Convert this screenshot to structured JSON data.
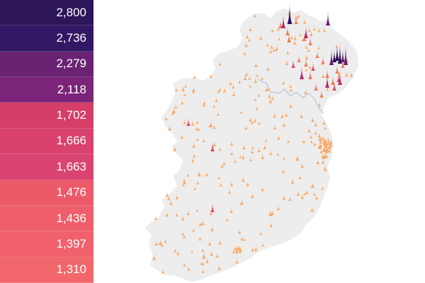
{
  "legend": {
    "items": [
      {
        "label": "2,800",
        "color": "#2c1659"
      },
      {
        "label": "2,736",
        "color": "#311764"
      },
      {
        "label": "2,279",
        "color": "#6a2272"
      },
      {
        "label": "2,118",
        "color": "#7b2479"
      },
      {
        "label": "1,702",
        "color": "#d53e67"
      },
      {
        "label": "1,666",
        "color": "#d8426c"
      },
      {
        "label": "1,663",
        "color": "#d94470"
      },
      {
        "label": "1,476",
        "color": "#ec5a6a"
      },
      {
        "label": "1,436",
        "color": "#ee5e6b"
      },
      {
        "label": "1,397",
        "color": "#f0616b"
      },
      {
        "label": "1,310",
        "color": "#f2676b"
      }
    ]
  },
  "map": {
    "land_color": "#ededed",
    "border_color": "#b8c4da",
    "spike_scale": [
      "#f9a765",
      "#f07b52",
      "#e0485e",
      "#b6266f",
      "#6e1c73",
      "#2a1259"
    ]
  }
}
